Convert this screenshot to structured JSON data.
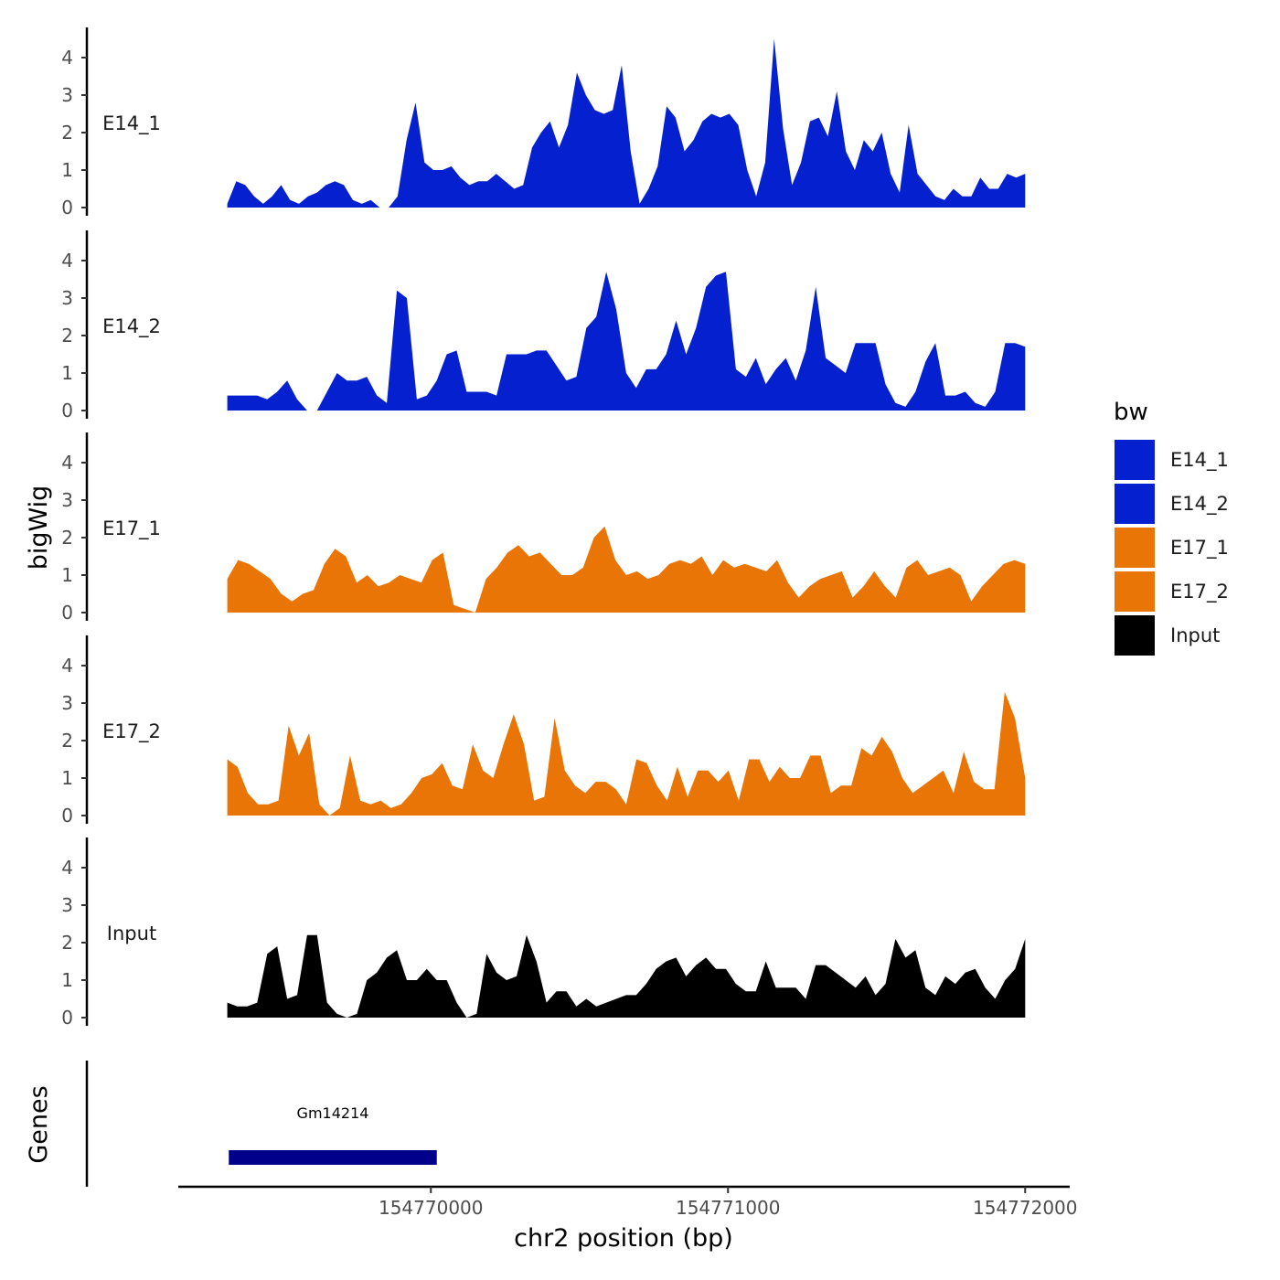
{
  "chart_data": {
    "type": "area",
    "ylabel": "bigWig",
    "xlabel": "chr2 position (bp)",
    "xlim": [
      154769150,
      154772150
    ],
    "ylim": [
      0,
      4.8
    ],
    "y_ticks": [
      "0",
      "1",
      "2",
      "3",
      "4"
    ],
    "x_ticks": [
      {
        "value": 154770000,
        "label": "154770000"
      },
      {
        "value": 154771000,
        "label": "154771000"
      },
      {
        "value": 154772000,
        "label": "154772000"
      }
    ],
    "series": [
      {
        "name": "E14_1",
        "label": "E14_1",
        "color": "#0520CF",
        "x_start": 154769315,
        "x_end": 154772000,
        "values": [
          0.1,
          0.7,
          0.6,
          0.3,
          0.1,
          0.3,
          0.6,
          0.2,
          0.1,
          0.3,
          0.4,
          0.6,
          0.7,
          0.6,
          0.2,
          0.1,
          0.2,
          0,
          0,
          0.3,
          1.8,
          2.8,
          1.2,
          1,
          1,
          1.1,
          0.8,
          0.6,
          0.7,
          0.7,
          0.9,
          0.7,
          0.5,
          0.6,
          1.6,
          2,
          2.3,
          1.6,
          2.2,
          3.6,
          3,
          2.6,
          2.5,
          2.6,
          3.8,
          1.5,
          0.1,
          0.5,
          1.1,
          2.7,
          2.4,
          1.5,
          1.8,
          2.3,
          2.5,
          2.4,
          2.5,
          2.2,
          1,
          0.3,
          1.2,
          4.5,
          2.1,
          0.6,
          1.2,
          2.3,
          2.4,
          1.9,
          3.1,
          1.5,
          1,
          1.8,
          1.5,
          2.0,
          0.9,
          0.4,
          2.2,
          0.9,
          0.6,
          0.3,
          0.2,
          0.5,
          0.3,
          0.3,
          0.8,
          0.5,
          0.5,
          0.9,
          0.8,
          0.9
        ]
      },
      {
        "name": "E14_2",
        "label": "E14_2",
        "color": "#0520CF",
        "x_start": 154769315,
        "x_end": 154772000,
        "values": [
          0.4,
          0.4,
          0.4,
          0.4,
          0.3,
          0.5,
          0.8,
          0.3,
          0,
          0,
          0.5,
          1,
          0.8,
          0.8,
          0.9,
          0.4,
          0.2,
          3.2,
          3,
          0.3,
          0.4,
          0.8,
          1.5,
          1.6,
          0.5,
          0.5,
          0.5,
          0.4,
          1.5,
          1.5,
          1.5,
          1.6,
          1.6,
          1.2,
          0.8,
          0.9,
          2.2,
          2.5,
          3.7,
          2.7,
          1,
          0.6,
          1.1,
          1.1,
          1.5,
          2.4,
          1.5,
          2.2,
          3.3,
          3.6,
          3.7,
          1.1,
          0.9,
          1.4,
          0.7,
          1.1,
          1.4,
          0.8,
          1.6,
          3.3,
          1.4,
          1.2,
          1.0,
          1.8,
          1.8,
          1.8,
          0.7,
          0.2,
          0.1,
          0.5,
          1.3,
          1.8,
          0.4,
          0.4,
          0.5,
          0.2,
          0.1,
          0.5,
          1.8,
          1.8,
          1.7
        ]
      },
      {
        "name": "E17_1",
        "label": "E17_1",
        "color": "#E87506",
        "x_start": 154769315,
        "x_end": 154772000,
        "values": [
          0.9,
          1.4,
          1.3,
          1.1,
          0.9,
          0.5,
          0.3,
          0.5,
          0.6,
          1.3,
          1.7,
          1.5,
          0.8,
          1.0,
          0.7,
          0.8,
          1.0,
          0.9,
          0.8,
          1.4,
          1.6,
          0.2,
          0.1,
          0,
          0.9,
          1.2,
          1.6,
          1.8,
          1.5,
          1.6,
          1.3,
          1.0,
          1.0,
          1.2,
          2.0,
          2.3,
          1.4,
          1.0,
          1.1,
          0.9,
          1.0,
          1.3,
          1.4,
          1.3,
          1.5,
          1.0,
          1.4,
          1.2,
          1.3,
          1.2,
          1.1,
          1.4,
          0.8,
          0.4,
          0.7,
          0.9,
          1.0,
          1.1,
          0.4,
          0.7,
          1.1,
          0.7,
          0.4,
          1.2,
          1.4,
          1.0,
          1.1,
          1.2,
          1.0,
          0.3,
          0.7,
          1.0,
          1.3,
          1.4,
          1.3
        ]
      },
      {
        "name": "E17_2",
        "label": "E17_2",
        "color": "#E87506",
        "x_start": 154769315,
        "x_end": 154772000,
        "values": [
          1.5,
          1.3,
          0.6,
          0.3,
          0.3,
          0.4,
          2.4,
          1.6,
          2.2,
          0.3,
          0,
          0.2,
          1.6,
          0.4,
          0.3,
          0.4,
          0.2,
          0.3,
          0.6,
          1.0,
          1.1,
          1.4,
          0.8,
          0.7,
          1.9,
          1.2,
          1.0,
          1.9,
          2.7,
          1.9,
          0.4,
          0.5,
          2.6,
          1.2,
          0.8,
          0.6,
          0.9,
          0.9,
          0.7,
          0.3,
          1.5,
          1.4,
          0.8,
          0.4,
          1.3,
          0.5,
          1.2,
          1.2,
          0.9,
          1.2,
          0.4,
          1.5,
          1.5,
          0.9,
          1.3,
          1.0,
          1.0,
          1.6,
          1.6,
          0.6,
          0.8,
          0.8,
          1.8,
          1.6,
          2.1,
          1.7,
          1.0,
          0.6,
          0.8,
          1.0,
          1.2,
          0.6,
          1.7,
          0.9,
          0.7,
          0.7,
          3.3,
          2.6,
          1.0
        ]
      },
      {
        "name": "Input",
        "label": "Input",
        "color": "#000000",
        "x_start": 154769315,
        "x_end": 154772000,
        "values": [
          0.4,
          0.3,
          0.3,
          0.4,
          1.7,
          1.9,
          0.5,
          0.6,
          2.2,
          2.2,
          0.4,
          0.1,
          0,
          0.1,
          1.0,
          1.2,
          1.6,
          1.8,
          1.0,
          1.0,
          1.3,
          1.0,
          1.0,
          0.4,
          0,
          0.1,
          1.7,
          1.2,
          1.0,
          1.1,
          2.2,
          1.5,
          0.4,
          0.7,
          0.7,
          0.3,
          0.5,
          0.3,
          0.4,
          0.5,
          0.6,
          0.6,
          0.9,
          1.3,
          1.5,
          1.6,
          1.1,
          1.4,
          1.6,
          1.3,
          1.3,
          0.9,
          0.7,
          0.7,
          1.5,
          0.8,
          0.8,
          0.8,
          0.5,
          1.4,
          1.4,
          1.2,
          1.0,
          0.8,
          1.1,
          0.6,
          0.9,
          2.1,
          1.6,
          1.8,
          0.8,
          0.6,
          1.1,
          0.9,
          1.2,
          1.3,
          0.8,
          0.5,
          1.0,
          1.3,
          2.1
        ]
      }
    ],
    "genes": [
      {
        "name": "Gm14214",
        "start": 154769320,
        "end": 154770020,
        "color": "#00008B"
      }
    ],
    "genes_track_label": "Genes",
    "legend": {
      "title": "bw",
      "position": "right"
    }
  }
}
